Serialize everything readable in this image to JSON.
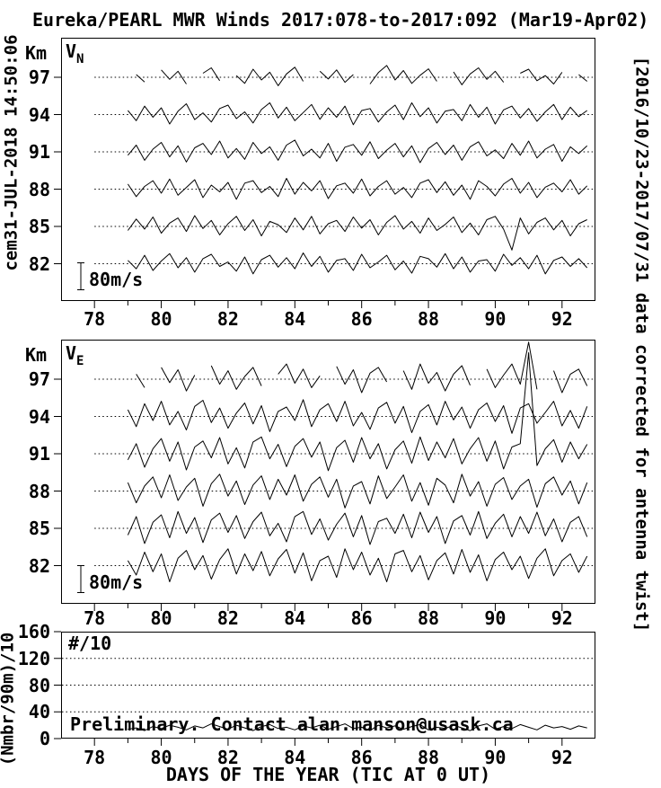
{
  "title": "Eureka/PEARL MWR Winds 2017:078-to-2017:092 (Mar19-Apr02)",
  "left_note": "cem31-JUL-2018 14:50:06",
  "right_note": "[2016/10/23-2017/07/31 data corrected for antenna twist]",
  "xlabel": "DAYS OF THE YEAR (TIC AT 0 UT)",
  "colors": {
    "fg": "#000000",
    "bg": "#ffffff"
  },
  "xticks": [
    78,
    80,
    82,
    84,
    86,
    88,
    90,
    92
  ],
  "panel_vn": {
    "var_label": "V",
    "var_sub": "N",
    "km_label": "Km",
    "scale_label": "80m/s"
  },
  "panel_ve": {
    "var_label": "V",
    "var_sub": "E",
    "km_label": "Km",
    "scale_label": "80m/s"
  },
  "panel_counts": {
    "corner_label": "#/10",
    "ylabel": "(Nmbr/90m)/10",
    "annotation": "Preliminary.  Contact alan.manson@usask.ca",
    "yticks": [
      160,
      120,
      80,
      40,
      0
    ],
    "gridlines": [
      120,
      80,
      40
    ]
  },
  "chart_data": [
    {
      "id": "vn",
      "type": "line",
      "title": "Northward wind VN vs day-of-year, stacked by altitude",
      "units": "m/s",
      "scale_bar_m_s": 80,
      "x_start": 79.0,
      "x_step": 0.25,
      "xlim": [
        77,
        93
      ],
      "altitudes_km": [
        97,
        94,
        91,
        88,
        85,
        82
      ],
      "series": [
        {
          "altitude_km": 97,
          "values": [
            null,
            8,
            -14,
            null,
            22,
            -6,
            18,
            -20,
            null,
            12,
            28,
            -10,
            null,
            5,
            -18,
            24,
            -8,
            15,
            -25,
            10,
            30,
            -12,
            null,
            18,
            -5,
            22,
            -15,
            8,
            null,
            -20,
            14,
            35,
            -8,
            20,
            -18,
            6,
            25,
            -12,
            null,
            16,
            -22,
            10,
            28,
            -6,
            18,
            -15,
            null,
            12,
            24,
            -10,
            5,
            -20,
            15,
            null,
            8,
            -12
          ]
        },
        {
          "altitude_km": 94,
          "values": [
            12,
            -18,
            25,
            -8,
            20,
            -28,
            10,
            32,
            -15,
            5,
            -22,
            18,
            28,
            -12,
            8,
            -25,
            15,
            35,
            -10,
            22,
            -18,
            6,
            30,
            -14,
            20,
            -8,
            25,
            -30,
            12,
            18,
            -22,
            8,
            28,
            -15,
            35,
            -6,
            20,
            -25,
            10,
            15,
            -18,
            30,
            -8,
            22,
            -28,
            14,
            25,
            -10,
            18,
            -20,
            8,
            30,
            -15,
            22,
            -6,
            12
          ]
        },
        {
          "altitude_km": 91,
          "values": [
            -10,
            20,
            -25,
            8,
            28,
            -15,
            18,
            -30,
            12,
            25,
            -8,
            32,
            -18,
            10,
            -22,
            28,
            -5,
            15,
            -25,
            20,
            35,
            -12,
            8,
            -18,
            25,
            -28,
            14,
            22,
            -10,
            30,
            -20,
            5,
            25,
            -15,
            18,
            -32,
            10,
            28,
            -8,
            20,
            -25,
            15,
            30,
            -12,
            6,
            -20,
            25,
            -10,
            32,
            -18,
            8,
            22,
            -28,
            15,
            -5,
            18
          ]
        },
        {
          "altitude_km": 88,
          "values": [
            15,
            -22,
            8,
            25,
            -12,
            30,
            -18,
            5,
            28,
            -25,
            12,
            -8,
            20,
            -30,
            18,
            25,
            -10,
            8,
            -22,
            32,
            -15,
            20,
            -5,
            25,
            -28,
            10,
            18,
            -12,
            30,
            -20,
            8,
            25,
            -15,
            5,
            -25,
            18,
            28,
            -10,
            22,
            -18,
            12,
            -30,
            25,
            8,
            -20,
            15,
            32,
            -12,
            20,
            -25,
            6,
            18,
            -8,
            28,
            -15,
            10
          ]
        },
        {
          "altitude_km": 85,
          "values": [
            -12,
            22,
            -8,
            28,
            -20,
            10,
            25,
            -15,
            32,
            -6,
            18,
            -25,
            8,
            30,
            -12,
            20,
            -28,
            15,
            5,
            -18,
            25,
            -10,
            30,
            -22,
            8,
            18,
            -15,
            28,
            -5,
            20,
            -25,
            12,
            32,
            -8,
            15,
            -20,
            25,
            -12,
            6,
            28,
            -18,
            10,
            -25,
            20,
            30,
            -8,
            -70,
            25,
            -22,
            12,
            25,
            -10,
            18,
            -28,
            8,
            20
          ]
        },
        {
          "altitude_km": 82,
          "values": [
            10,
            -15,
            25,
            -20,
            8,
            30,
            -12,
            18,
            -25,
            15,
            28,
            -8,
            5,
            -22,
            20,
            -30,
            12,
            25,
            -10,
            18,
            -15,
            32,
            -8,
            22,
            -25,
            10,
            15,
            -20,
            28,
            -12,
            5,
            25,
            -18,
            8,
            -28,
            22,
            15,
            -10,
            30,
            -15,
            20,
            -25,
            8,
            12,
            -22,
            28,
            -5,
            18,
            -15,
            25,
            -30,
            10,
            20,
            -8,
            15,
            -12
          ]
        }
      ]
    },
    {
      "id": "ve",
      "type": "line",
      "title": "Eastward wind VE vs day-of-year, stacked by altitude",
      "units": "m/s",
      "scale_bar_m_s": 80,
      "x_start": 79.0,
      "x_step": 0.25,
      "xlim": [
        77,
        93
      ],
      "altitudes_km": [
        97,
        94,
        91,
        88,
        85,
        82
      ],
      "series": [
        {
          "altitude_km": 97,
          "values": [
            null,
            15,
            -25,
            null,
            35,
            -10,
            28,
            -35,
            12,
            null,
            40,
            -15,
            25,
            -30,
            8,
            35,
            -20,
            null,
            15,
            45,
            -12,
            30,
            -25,
            10,
            null,
            38,
            -15,
            28,
            -40,
            18,
            35,
            -8,
            null,
            25,
            -30,
            45,
            -12,
            20,
            -35,
            15,
            40,
            -18,
            null,
            30,
            -25,
            12,
            45,
            -15,
            110,
            -30,
            null,
            25,
            -40,
            15,
            30,
            -20
          ]
        },
        {
          "altitude_km": 94,
          "values": [
            20,
            -30,
            38,
            -12,
            45,
            -25,
            15,
            -40,
            30,
            48,
            -18,
            25,
            -35,
            10,
            40,
            -22,
            32,
            -45,
            15,
            28,
            -12,
            50,
            -30,
            20,
            38,
            -15,
            45,
            -28,
            12,
            -38,
            25,
            42,
            -20,
            30,
            -48,
            15,
            35,
            -25,
            45,
            -10,
            28,
            -35,
            20,
            40,
            -15,
            32,
            -50,
            25,
            38,
            -20,
            12,
            45,
            -28,
            18,
            -35,
            30
          ]
        },
        {
          "altitude_km": 91,
          "values": [
            -18,
            30,
            -40,
            15,
            45,
            -22,
            35,
            -48,
            20,
            38,
            -12,
            48,
            -30,
            18,
            -42,
            35,
            50,
            -15,
            28,
            -38,
            22,
            45,
            -10,
            35,
            -50,
            18,
            40,
            -25,
            48,
            -15,
            30,
            -45,
            12,
            38,
            -28,
            50,
            -20,
            35,
            -12,
            45,
            -30,
            15,
            48,
            -22,
            38,
            -45,
            20,
            30,
            300,
            -35,
            15,
            42,
            -25,
            35,
            -15,
            28
          ]
        },
        {
          "altitude_km": 88,
          "values": [
            25,
            -35,
            15,
            42,
            -20,
            48,
            -28,
            12,
            38,
            -45,
            22,
            50,
            -15,
            30,
            -40,
            18,
            45,
            -25,
            35,
            -12,
            48,
            -30,
            20,
            42,
            -18,
            35,
            -50,
            15,
            28,
            -38,
            45,
            -22,
            12,
            48,
            -30,
            25,
            -42,
            38,
            18,
            -35,
            50,
            -15,
            28,
            -45,
            20,
            40,
            -25,
            15,
            35,
            -48,
            22,
            42,
            -12,
            30,
            -38,
            25
          ]
        },
        {
          "altitude_km": 85,
          "values": [
            -20,
            35,
            -45,
            18,
            40,
            -28,
            50,
            -15,
            32,
            -42,
            25,
            45,
            -12,
            38,
            -30,
            20,
            48,
            -22,
            15,
            -40,
            35,
            50,
            -18,
            28,
            -35,
            12,
            45,
            -25,
            38,
            -48,
            20,
            30,
            -15,
            42,
            -28,
            48,
            -12,
            35,
            -45,
            22,
            38,
            -20,
            50,
            -30,
            15,
            42,
            -25,
            35,
            -15,
            48,
            -22,
            28,
            -40,
            18,
            35,
            -25
          ]
        },
        {
          "altitude_km": 82,
          "values": [
            15,
            -28,
            40,
            -18,
            35,
            -48,
            22,
            45,
            -12,
            30,
            -40,
            18,
            50,
            -25,
            35,
            -15,
            42,
            -30,
            20,
            48,
            -22,
            38,
            -45,
            15,
            28,
            -35,
            50,
            -12,
            40,
            -28,
            22,
            -48,
            35,
            45,
            -18,
            30,
            -42,
            15,
            38,
            -25,
            48,
            -20,
            32,
            -45,
            18,
            40,
            -12,
            28,
            -38,
            22,
            50,
            -30,
            15,
            35,
            -20,
            28
          ]
        }
      ]
    },
    {
      "id": "counts",
      "type": "line",
      "title": "#/10 (Nmbr/90m)/10 vs day-of-year",
      "ylim": [
        0,
        160
      ],
      "yticks": [
        160,
        120,
        80,
        40,
        0
      ],
      "x_start": 79.0,
      "x_step": 0.25,
      "xlim": [
        77,
        93
      ],
      "values": [
        14,
        16,
        12,
        18,
        15,
        20,
        17,
        13,
        19,
        16,
        22,
        18,
        14,
        20,
        16,
        12,
        18,
        21,
        15,
        17,
        13,
        19,
        16,
        20,
        14,
        18,
        22,
        15,
        17,
        12,
        20,
        16,
        19,
        14,
        18,
        21,
        13,
        17,
        15,
        20,
        16,
        12,
        19,
        22,
        14,
        18,
        15,
        21,
        17,
        13,
        20,
        16,
        18,
        14,
        19,
        16
      ]
    }
  ]
}
